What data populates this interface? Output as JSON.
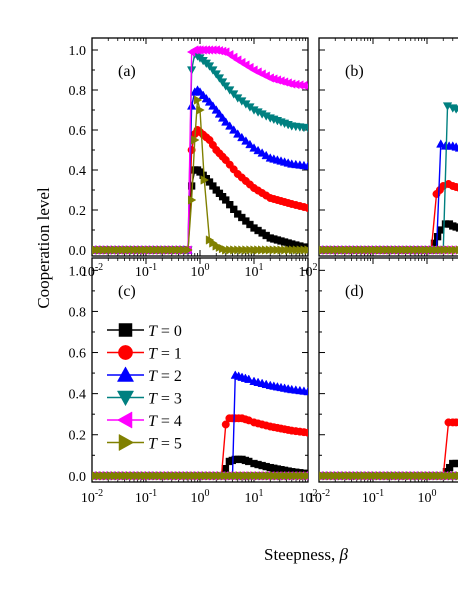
{
  "figure": {
    "ylabel": "Cooperation level",
    "xlabel_text": "Steepness, ",
    "xlabel_symbol": "β"
  },
  "chart_data": [
    {
      "type": "line",
      "panel": "(a)",
      "xscale": "log",
      "xlim": [
        0.01,
        100
      ],
      "ylim": [
        -0.03,
        1.06
      ],
      "xtick_bases": [
        "10",
        "10",
        "10",
        "10",
        "10"
      ],
      "xtick_exps": [
        "-2",
        "-1",
        "0",
        "1",
        "2"
      ],
      "yticks": [
        "0.0",
        "0.2",
        "0.4",
        "0.6",
        "0.8",
        "1.0"
      ],
      "series": [
        {
          "name": "T = 0",
          "color": "#000000",
          "marker": "square",
          "points": [
            [
              0.01,
              0
            ],
            [
              0.5,
              0
            ],
            [
              0.6,
              0
            ],
            [
              0.7,
              0.32
            ],
            [
              0.8,
              0.4
            ],
            [
              0.9,
              0.4
            ],
            [
              1.0,
              0.39
            ],
            [
              1.5,
              0.34
            ],
            [
              2,
              0.3
            ],
            [
              3,
              0.25
            ],
            [
              5,
              0.18
            ],
            [
              10,
              0.11
            ],
            [
              20,
              0.06
            ],
            [
              50,
              0.03
            ],
            [
              100,
              0.01
            ]
          ]
        },
        {
          "name": "T = 1",
          "color": "#ff0000",
          "marker": "circle",
          "points": [
            [
              0.01,
              0
            ],
            [
              0.5,
              0
            ],
            [
              0.6,
              0
            ],
            [
              0.7,
              0.5
            ],
            [
              0.8,
              0.58
            ],
            [
              0.9,
              0.6
            ],
            [
              1.0,
              0.59
            ],
            [
              1.5,
              0.55
            ],
            [
              2,
              0.5
            ],
            [
              3,
              0.45
            ],
            [
              5,
              0.38
            ],
            [
              10,
              0.31
            ],
            [
              20,
              0.26
            ],
            [
              50,
              0.23
            ],
            [
              100,
              0.21
            ]
          ]
        },
        {
          "name": "T = 2",
          "color": "#0000ff",
          "marker": "triangle-up",
          "points": [
            [
              0.01,
              0
            ],
            [
              0.5,
              0
            ],
            [
              0.6,
              0
            ],
            [
              0.7,
              0.72
            ],
            [
              0.8,
              0.79
            ],
            [
              0.9,
              0.8
            ],
            [
              1.0,
              0.79
            ],
            [
              1.5,
              0.74
            ],
            [
              2,
              0.7
            ],
            [
              3,
              0.64
            ],
            [
              5,
              0.58
            ],
            [
              10,
              0.51
            ],
            [
              20,
              0.46
            ],
            [
              50,
              0.43
            ],
            [
              100,
              0.42
            ]
          ]
        },
        {
          "name": "T = 3",
          "color": "#008080",
          "marker": "triangle-down",
          "points": [
            [
              0.01,
              0
            ],
            [
              0.5,
              0
            ],
            [
              0.6,
              0
            ],
            [
              0.7,
              0.9
            ],
            [
              0.8,
              0.98
            ],
            [
              0.9,
              0.97
            ],
            [
              1.0,
              0.96
            ],
            [
              1.5,
              0.92
            ],
            [
              2,
              0.88
            ],
            [
              3,
              0.82
            ],
            [
              5,
              0.76
            ],
            [
              10,
              0.7
            ],
            [
              20,
              0.66
            ],
            [
              50,
              0.62
            ],
            [
              100,
              0.61
            ]
          ]
        },
        {
          "name": "T = 4",
          "color": "#ff00ff",
          "marker": "triangle-left",
          "points": [
            [
              0.01,
              0
            ],
            [
              0.5,
              0
            ],
            [
              0.6,
              0
            ],
            [
              0.7,
              0.99
            ],
            [
              0.8,
              1.0
            ],
            [
              0.9,
              1.0
            ],
            [
              1.0,
              1.0
            ],
            [
              1.5,
              1.0
            ],
            [
              2,
              1.0
            ],
            [
              3,
              0.99
            ],
            [
              5,
              0.95
            ],
            [
              10,
              0.9
            ],
            [
              20,
              0.86
            ],
            [
              50,
              0.83
            ],
            [
              100,
              0.82
            ]
          ]
        },
        {
          "name": "T = 5",
          "color": "#808000",
          "marker": "triangle-right",
          "points": [
            [
              0.01,
              0
            ],
            [
              0.5,
              0
            ],
            [
              0.6,
              0
            ],
            [
              0.7,
              0.25
            ],
            [
              0.8,
              0.55
            ],
            [
              0.9,
              0.75
            ],
            [
              1.0,
              0.7
            ],
            [
              1.2,
              0.35
            ],
            [
              1.5,
              0.05
            ],
            [
              2,
              0.02
            ],
            [
              3,
              0
            ],
            [
              10,
              0
            ],
            [
              100,
              0
            ]
          ]
        }
      ]
    },
    {
      "type": "line",
      "panel": "(b)",
      "xscale": "log",
      "xlim": [
        0.01,
        100
      ],
      "ylim": [
        -0.03,
        1.06
      ],
      "xtick_bases": [],
      "xtick_exps": [],
      "yticks": [],
      "series": [
        {
          "name": "T = 0",
          "color": "#000000",
          "marker": "square",
          "points": [
            [
              0.01,
              0
            ],
            [
              1.2,
              0
            ],
            [
              1.8,
              0.1
            ],
            [
              2.2,
              0.13
            ],
            [
              2.6,
              0.13
            ],
            [
              3.0,
              0.12
            ],
            [
              4,
              0.11
            ]
          ]
        },
        {
          "name": "T = 1",
          "color": "#ff0000",
          "marker": "circle",
          "points": [
            [
              0.01,
              0
            ],
            [
              1.2,
              0
            ],
            [
              1.5,
              0.28
            ],
            [
              2.0,
              0.32
            ],
            [
              2.5,
              0.33
            ],
            [
              3,
              0.32
            ],
            [
              4,
              0.31
            ]
          ]
        },
        {
          "name": "T = 2",
          "color": "#0000ff",
          "marker": "triangle-up",
          "points": [
            [
              0.01,
              0
            ],
            [
              1.5,
              0
            ],
            [
              1.8,
              0.53
            ],
            [
              2.2,
              0.52
            ],
            [
              3,
              0.52
            ],
            [
              4,
              0.51
            ]
          ]
        },
        {
          "name": "T = 3",
          "color": "#008080",
          "marker": "triangle-down",
          "points": [
            [
              0.01,
              0
            ],
            [
              2.0,
              0
            ],
            [
              2.4,
              0.72
            ],
            [
              3,
              0.71
            ],
            [
              4,
              0.7
            ]
          ]
        },
        {
          "name": "T = 4",
          "color": "#ff00ff",
          "marker": "triangle-left",
          "points": [
            [
              0.01,
              0
            ],
            [
              4,
              0
            ]
          ]
        },
        {
          "name": "T = 5",
          "color": "#808000",
          "marker": "triangle-right",
          "points": [
            [
              0.01,
              0
            ],
            [
              4,
              0
            ]
          ]
        }
      ]
    },
    {
      "type": "line",
      "panel": "(c)",
      "xscale": "log",
      "xlim": [
        0.01,
        100
      ],
      "ylim": [
        -0.03,
        1.06
      ],
      "xtick_bases": [
        "10",
        "10",
        "10",
        "10",
        "10"
      ],
      "xtick_exps": [
        "-2",
        "-1",
        "0",
        "1",
        "2"
      ],
      "yticks": [
        "0.0",
        "0.2",
        "0.4",
        "0.6",
        "0.8",
        "1.0"
      ],
      "series": [
        {
          "name": "T = 0",
          "color": "#000000",
          "marker": "square",
          "points": [
            [
              0.01,
              0
            ],
            [
              2.5,
              0
            ],
            [
              3.5,
              0.07
            ],
            [
              4.5,
              0.08
            ],
            [
              6,
              0.08
            ],
            [
              8,
              0.07
            ],
            [
              10,
              0.06
            ],
            [
              20,
              0.04
            ],
            [
              50,
              0.02
            ],
            [
              100,
              0.01
            ]
          ]
        },
        {
          "name": "T = 1",
          "color": "#ff0000",
          "marker": "circle",
          "points": [
            [
              0.01,
              0
            ],
            [
              2.5,
              0
            ],
            [
              3.0,
              0.25
            ],
            [
              3.5,
              0.28
            ],
            [
              4.5,
              0.28
            ],
            [
              6,
              0.28
            ],
            [
              8,
              0.27
            ],
            [
              10,
              0.26
            ],
            [
              20,
              0.24
            ],
            [
              50,
              0.22
            ],
            [
              100,
              0.21
            ]
          ]
        },
        {
          "name": "T = 2",
          "color": "#0000ff",
          "marker": "triangle-up",
          "points": [
            [
              0.01,
              0
            ],
            [
              4.0,
              0
            ],
            [
              4.5,
              0.49
            ],
            [
              6,
              0.48
            ],
            [
              8,
              0.47
            ],
            [
              10,
              0.46
            ],
            [
              20,
              0.44
            ],
            [
              50,
              0.42
            ],
            [
              100,
              0.41
            ]
          ]
        },
        {
          "name": "T = 3",
          "color": "#008080",
          "marker": "triangle-down",
          "points": [
            [
              0.01,
              0
            ],
            [
              100,
              0
            ]
          ]
        },
        {
          "name": "T = 4",
          "color": "#ff00ff",
          "marker": "triangle-left",
          "points": [
            [
              0.01,
              0
            ],
            [
              100,
              0
            ]
          ]
        },
        {
          "name": "T = 5",
          "color": "#808000",
          "marker": "triangle-right",
          "points": [
            [
              0.01,
              0
            ],
            [
              100,
              0
            ]
          ]
        }
      ]
    },
    {
      "type": "line",
      "panel": "(d)",
      "xscale": "log",
      "xlim": [
        0.01,
        100
      ],
      "ylim": [
        -0.03,
        1.06
      ],
      "xtick_bases": [
        "10",
        "10",
        "10"
      ],
      "xtick_exps": [
        "-2",
        "-1",
        "0"
      ],
      "yticks": [],
      "series": [
        {
          "name": "T = 0",
          "color": "#000000",
          "marker": "square",
          "points": [
            [
              0.01,
              0
            ],
            [
              2.0,
              0
            ],
            [
              3.0,
              0.06
            ],
            [
              4,
              0.06
            ]
          ]
        },
        {
          "name": "T = 1",
          "color": "#ff0000",
          "marker": "circle",
          "points": [
            [
              0.01,
              0
            ],
            [
              2.0,
              0
            ],
            [
              2.5,
              0.26
            ],
            [
              3,
              0.26
            ],
            [
              4,
              0.26
            ]
          ]
        },
        {
          "name": "T = 2",
          "color": "#0000ff",
          "marker": "triangle-up",
          "points": [
            [
              0.01,
              0
            ],
            [
              4,
              0
            ]
          ]
        },
        {
          "name": "T = 3",
          "color": "#008080",
          "marker": "triangle-down",
          "points": [
            [
              0.01,
              0
            ],
            [
              4,
              0
            ]
          ]
        },
        {
          "name": "T = 4",
          "color": "#ff00ff",
          "marker": "triangle-left",
          "points": [
            [
              0.01,
              0
            ],
            [
              4,
              0
            ]
          ]
        },
        {
          "name": "T = 5",
          "color": "#808000",
          "marker": "triangle-right",
          "points": [
            [
              0.01,
              0
            ],
            [
              4,
              0
            ]
          ]
        }
      ]
    }
  ],
  "legend": {
    "panel": "(c)",
    "placement": "left",
    "entries": [
      {
        "var": "T",
        "rest": " = 0",
        "color": "#000000",
        "marker": "square"
      },
      {
        "var": "T",
        "rest": " = 1",
        "color": "#ff0000",
        "marker": "circle"
      },
      {
        "var": "T",
        "rest": " = 2",
        "color": "#0000ff",
        "marker": "triangle-up"
      },
      {
        "var": "T",
        "rest": " = 3",
        "color": "#008080",
        "marker": "triangle-down"
      },
      {
        "var": "T",
        "rest": " = 4",
        "color": "#ff00ff",
        "marker": "triangle-left"
      },
      {
        "var": "T",
        "rest": " = 5",
        "color": "#808000",
        "marker": "triangle-right"
      }
    ]
  }
}
